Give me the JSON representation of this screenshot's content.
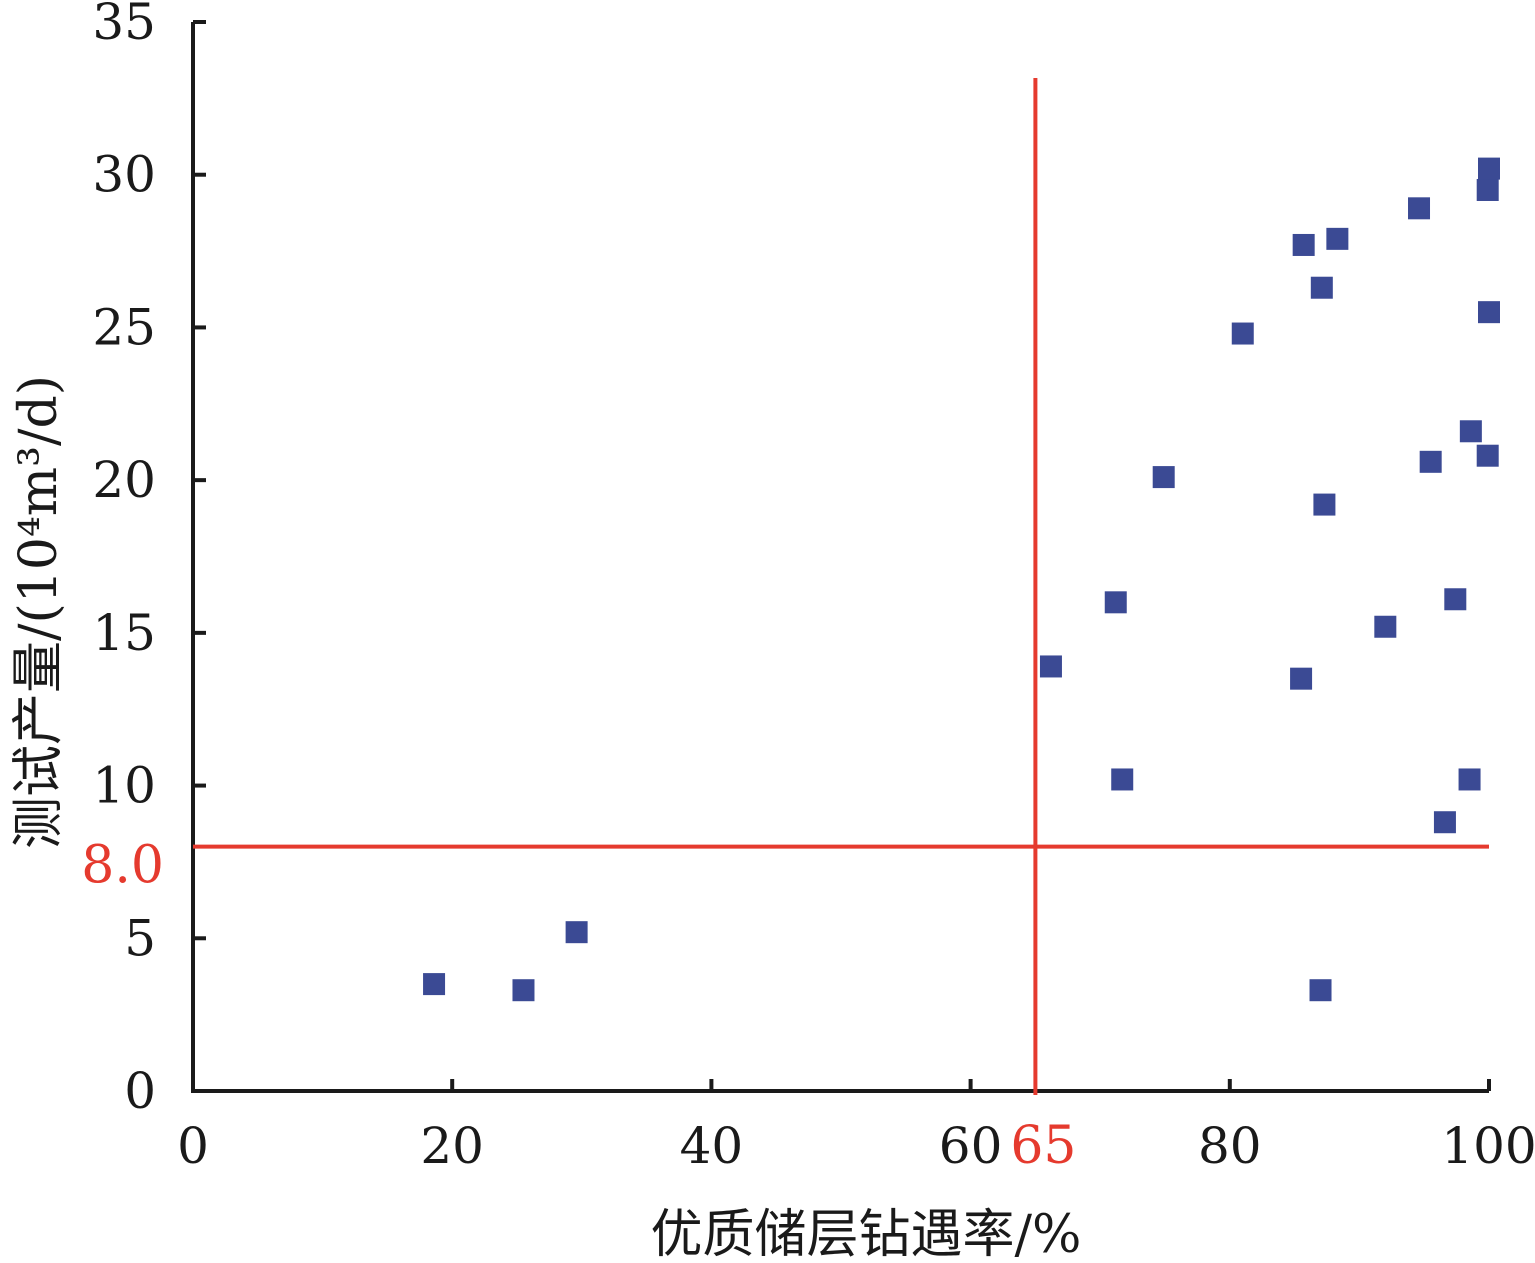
{
  "chart_data": {
    "type": "scatter",
    "xlabel": "优质储层钻遇率/%",
    "ylabel": "测试产量/(10⁴m³/d)",
    "xlim": [
      0,
      100
    ],
    "ylim": [
      0,
      35
    ],
    "x_ticks": [
      "0",
      "20",
      "40",
      "60",
      "80",
      "100"
    ],
    "y_ticks": [
      "0",
      "5",
      "10",
      "15",
      "20",
      "25",
      "30",
      "35"
    ],
    "grid": false,
    "points": [
      {
        "x": 18.6,
        "y": 3.5
      },
      {
        "x": 25.5,
        "y": 3.3
      },
      {
        "x": 29.6,
        "y": 5.2
      },
      {
        "x": 66.2,
        "y": 13.9
      },
      {
        "x": 71.2,
        "y": 16.0
      },
      {
        "x": 71.7,
        "y": 10.2
      },
      {
        "x": 74.9,
        "y": 20.1
      },
      {
        "x": 81.0,
        "y": 24.8
      },
      {
        "x": 85.5,
        "y": 13.5
      },
      {
        "x": 85.7,
        "y": 27.7
      },
      {
        "x": 87.1,
        "y": 26.3
      },
      {
        "x": 87.3,
        "y": 19.2
      },
      {
        "x": 87.0,
        "y": 3.3
      },
      {
        "x": 88.3,
        "y": 27.9
      },
      {
        "x": 92.0,
        "y": 15.2
      },
      {
        "x": 94.6,
        "y": 28.9
      },
      {
        "x": 95.5,
        "y": 20.6
      },
      {
        "x": 96.6,
        "y": 8.8
      },
      {
        "x": 97.4,
        "y": 16.1
      },
      {
        "x": 98.5,
        "y": 10.2
      },
      {
        "x": 98.6,
        "y": 21.6
      },
      {
        "x": 99.9,
        "y": 20.8
      },
      {
        "x": 99.9,
        "y": 29.5
      },
      {
        "x": 100.0,
        "y": 30.2
      },
      {
        "x": 100.0,
        "y": 25.5
      }
    ],
    "reference_lines": {
      "vertical": {
        "x": 65,
        "label": "65"
      },
      "horizontal": {
        "y": 8.0,
        "label": "8.0"
      }
    }
  },
  "colors": {
    "marker": "#3b4a94",
    "reference": "#e53a2e",
    "axis": "#1a1a1a"
  }
}
